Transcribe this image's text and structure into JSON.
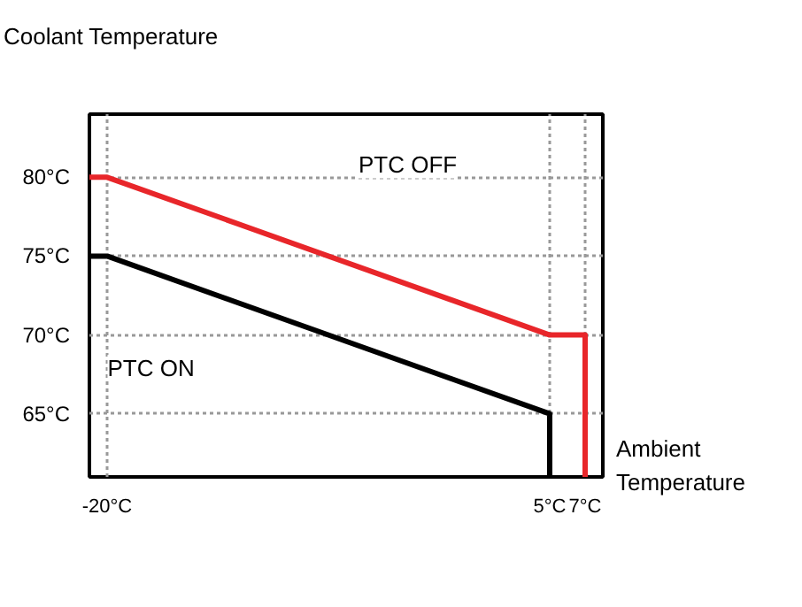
{
  "chart_data": {
    "type": "line",
    "ylabel": "Coolant Temperature",
    "xlabel": "Ambient Temperature",
    "xlim": [
      -21,
      8
    ],
    "ylim": [
      61,
      84
    ],
    "xticks": [
      {
        "value": -20,
        "label": "-20°C"
      },
      {
        "value": 5,
        "label": "5°C"
      },
      {
        "value": 7,
        "label": "7°C"
      }
    ],
    "yticks": [
      {
        "value": 65,
        "label": "65°C"
      },
      {
        "value": 70,
        "label": "70°C"
      },
      {
        "value": 75,
        "label": "75°C"
      },
      {
        "value": 80,
        "label": "80°C"
      }
    ],
    "series": [
      {
        "color": "#e8262a",
        "x": [
          -21,
          -20,
          5,
          7,
          7
        ],
        "values": [
          80,
          80,
          70,
          70,
          61
        ]
      },
      {
        "color": "#000000",
        "x": [
          -21,
          -20,
          5,
          5
        ],
        "values": [
          75,
          75,
          65,
          61
        ]
      }
    ],
    "annotations": [
      "PTC OFF",
      "PTC ON"
    ],
    "grid": true
  }
}
